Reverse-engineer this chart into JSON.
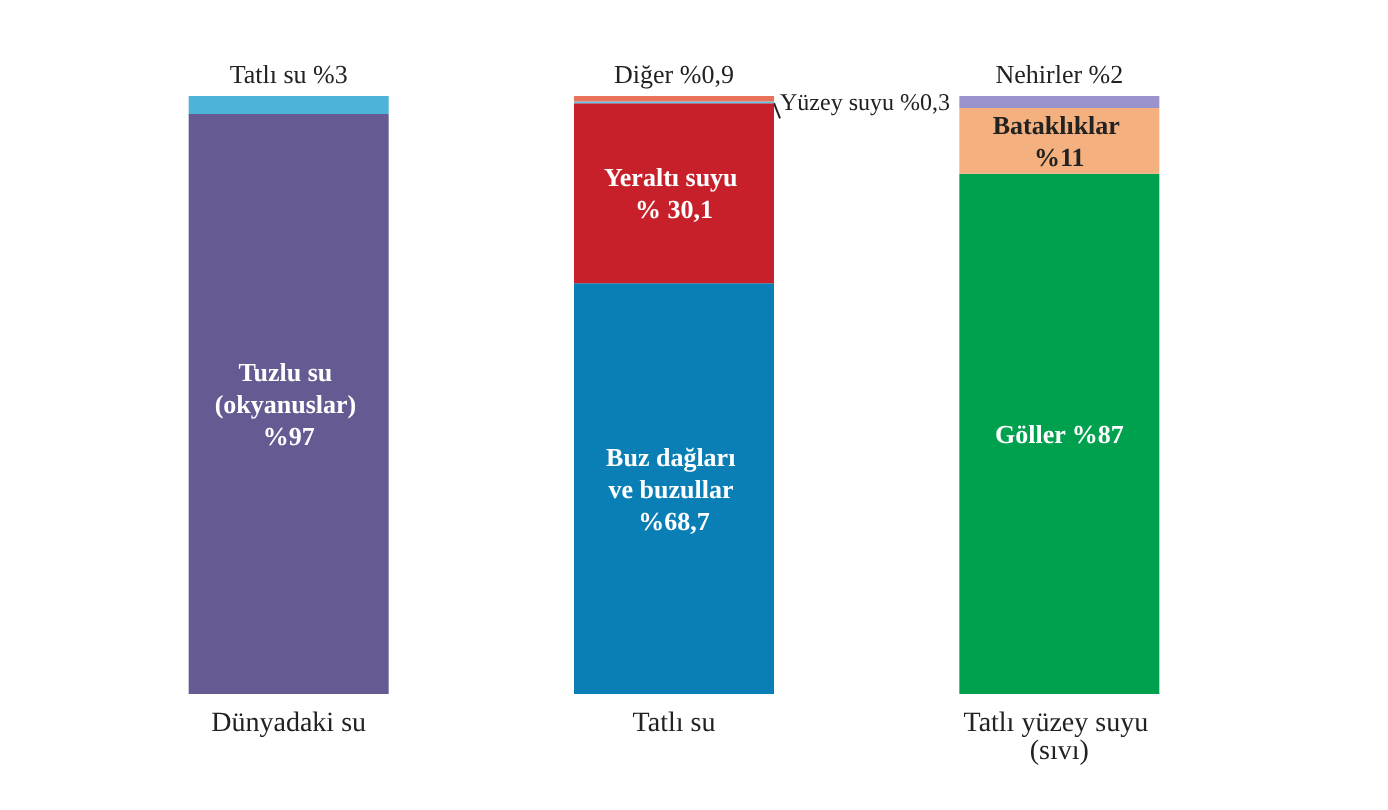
{
  "chart_data": {
    "type": "bar",
    "stacked": true,
    "categories": [
      "Dünyadaki su",
      "Tatlı su",
      "Tatlı yüzey suyu (sıvı)"
    ],
    "series": [
      {
        "color": "#655a91",
        "values": [
          97,
          null,
          null
        ],
        "value_labels": [
          "Tuzlu su (okyanuslar) %97",
          null,
          null
        ]
      },
      {
        "color": "#4fb3d9",
        "values": [
          3,
          null,
          null
        ],
        "value_labels": [
          "Tatlı su %3",
          null,
          null
        ]
      },
      {
        "color": "#0a7fb5",
        "values": [
          null,
          68.7,
          null
        ],
        "value_labels": [
          null,
          "Buz dağları ve buzullar %68,7",
          null
        ]
      },
      {
        "color": "#c8202a",
        "values": [
          null,
          30.1,
          null
        ],
        "value_labels": [
          null,
          "Yeraltı suyu % 30,1",
          null
        ]
      },
      {
        "color": "#5bc5ea",
        "values": [
          null,
          0.3,
          null
        ],
        "value_labels": [
          null,
          "Yüzey suyu %0,3",
          null
        ]
      },
      {
        "color": "#e9735a",
        "values": [
          null,
          0.9,
          null
        ],
        "value_labels": [
          null,
          "Diğer %0,9",
          null
        ]
      },
      {
        "color": "#00a14e",
        "values": [
          null,
          null,
          87
        ],
        "value_labels": [
          null,
          null,
          "Göller %87"
        ]
      },
      {
        "color": "#f4b07f",
        "values": [
          null,
          null,
          11
        ],
        "value_labels": [
          null,
          null,
          "Bataklıklar %11"
        ]
      },
      {
        "color": "#9b94cc",
        "values": [
          null,
          null,
          2
        ],
        "value_labels": [
          null,
          null,
          "Nehirler %2"
        ]
      }
    ]
  }
}
